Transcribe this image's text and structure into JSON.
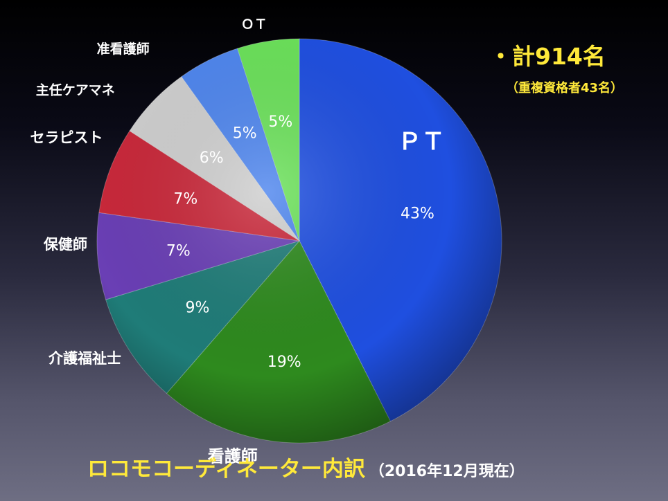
{
  "summary": {
    "total": "・計914名",
    "duplicates": "（重複資格者43名）"
  },
  "footer": {
    "title": "ロコモコーディネーター内訳",
    "date": "（2016年12月現在）"
  },
  "colors": {
    "title_yellow": "#ffe93a"
  },
  "chart_data": {
    "type": "pie",
    "start": "12 o'clock, clockwise",
    "slices": [
      {
        "label": "ＰＴ",
        "value": 43,
        "pct_label": "43%",
        "color": "#1f4fe0"
      },
      {
        "label": "看護師",
        "value": 19,
        "pct_label": "19%",
        "color": "#2e8a1e"
      },
      {
        "label": "介護福祉士",
        "value": 9,
        "pct_label": "9%",
        "color": "#1f7c78"
      },
      {
        "label": "保健師",
        "value": 7,
        "pct_label": "7%",
        "color": "#6a3fb5"
      },
      {
        "label": "セラピスト",
        "value": 7,
        "pct_label": "7%",
        "color": "#c9283a"
      },
      {
        "label": "主任ケアマネ",
        "value": 6,
        "pct_label": "6%",
        "color": "#cfcfcf"
      },
      {
        "label": "准看護師",
        "value": 5,
        "pct_label": "5%",
        "color": "#4f86ee"
      },
      {
        "label": "ＯＴ",
        "value": 5,
        "pct_label": "5%",
        "color": "#6be15a"
      }
    ]
  }
}
